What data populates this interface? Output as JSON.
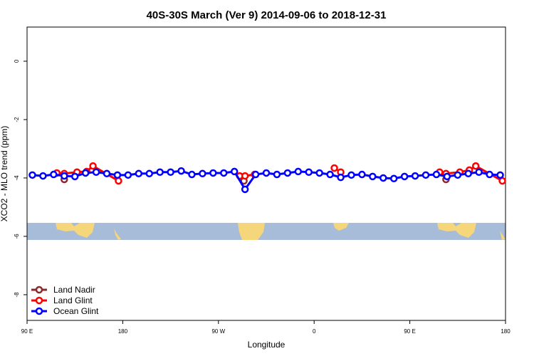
{
  "chart_data": {
    "type": "line",
    "title": "40S-30S March (Ver 9)   2014-09-06 to 2018-12-31",
    "x_label": "Longitude",
    "y_label": "XCO2 - MLO trend (ppm)",
    "xlim": [
      90,
      540
    ],
    "ylim": [
      -8.88,
      1.17
    ],
    "xticks": [
      {
        "value": 90,
        "label": "90 E"
      },
      180,
      {
        "value": 270,
        "label": "90 W"
      },
      {
        "value": 360,
        "label": "0"
      },
      {
        "value": 450,
        "label": "90 E"
      },
      {
        "value": 540,
        "label": "180"
      }
    ],
    "yticks": [
      0,
      -2,
      -4,
      -6,
      -8
    ],
    "legend": "bottom-left",
    "series": [
      {
        "name": "Land Nadir",
        "color": "#8b2a2a",
        "x": [
          125,
          200,
          294,
          400,
          484
        ],
        "values": [
          -4.05,
          null,
          -4.1,
          null,
          -4.05
        ]
      },
      {
        "name": "Land Glint",
        "color": "#ff0000",
        "x": [
          118,
          125,
          137,
          146,
          152,
          176,
          230,
          290,
          295,
          304,
          340,
          379,
          385,
          430,
          478,
          484,
          497,
          506,
          512,
          537
        ],
        "values": [
          -3.83,
          -3.85,
          -3.8,
          -3.78,
          -3.59,
          -4.1,
          null,
          -3.93,
          -3.93,
          -3.88,
          null,
          -3.66,
          -3.8,
          null,
          -3.8,
          -3.85,
          -3.8,
          -3.73,
          -3.59,
          -4.1
        ]
      },
      {
        "name": "Ocean Glint",
        "color": "#0000ff",
        "x": [
          95,
          105,
          115,
          125,
          135,
          145,
          155,
          165,
          175,
          185,
          195,
          205,
          215,
          225,
          235,
          245,
          255,
          265,
          275,
          285,
          295,
          305,
          315,
          325,
          335,
          345,
          355,
          365,
          375,
          385,
          395,
          405,
          415,
          425,
          435,
          445,
          455,
          465,
          475,
          485,
          495,
          505,
          515,
          525,
          535
        ],
        "values": [
          -3.9,
          -3.93,
          -3.88,
          -3.93,
          -3.95,
          -3.83,
          -3.8,
          -3.85,
          -3.9,
          -3.9,
          -3.85,
          -3.85,
          -3.8,
          -3.8,
          -3.76,
          -3.88,
          -3.85,
          -3.83,
          -3.83,
          -3.78,
          -4.39,
          -3.88,
          -3.83,
          -3.88,
          -3.83,
          -3.78,
          -3.8,
          -3.83,
          -3.88,
          -3.98,
          -3.9,
          -3.88,
          -3.95,
          -4.0,
          -4.02,
          -3.95,
          -3.93,
          -3.9,
          -3.88,
          -3.95,
          -3.9,
          -3.85,
          -3.8,
          -3.88,
          -3.9
        ]
      }
    ]
  }
}
